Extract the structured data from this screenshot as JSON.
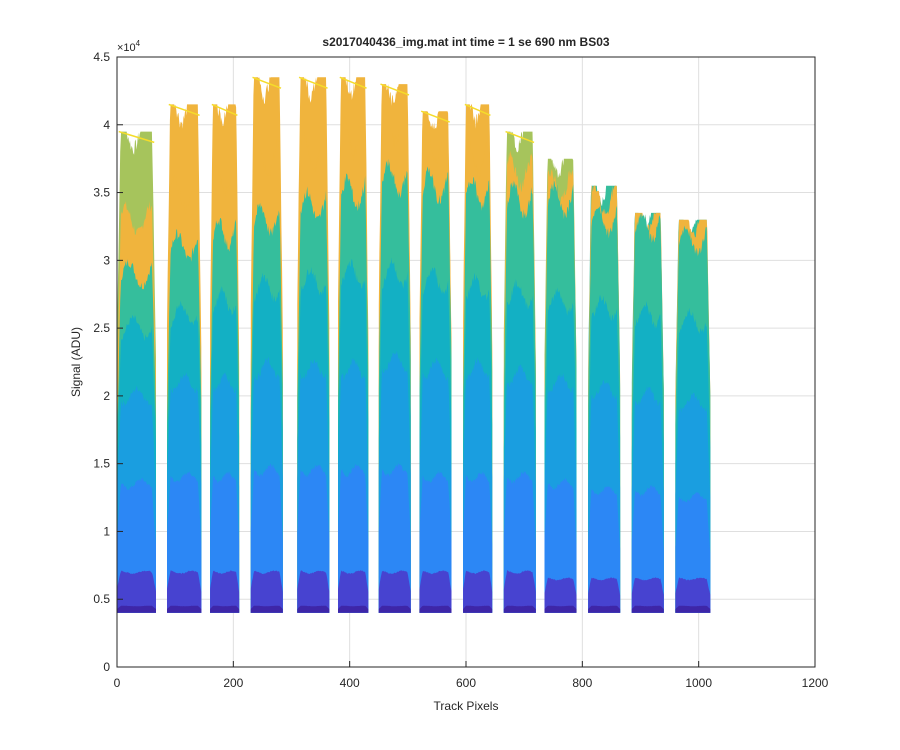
{
  "chart_data": {
    "type": "area",
    "title": "s2017040436_img.mat int time = 1 se  690 nm BS03",
    "xlabel": "Track Pixels",
    "ylabel": "Signal (ADU)",
    "y_exponent_label": "×10",
    "y_exponent_power": "4",
    "xlim": [
      0,
      1200
    ],
    "ylim": [
      0,
      45000
    ],
    "x_ticks": [
      "0",
      "200",
      "400",
      "600",
      "800",
      "1000",
      "1200"
    ],
    "x_tick_values": [
      0,
      200,
      400,
      600,
      800,
      1000,
      1200
    ],
    "y_ticks": [
      "0",
      "0.5",
      "1",
      "1.5",
      "2",
      "2.5",
      "3",
      "3.5",
      "4",
      "4.5"
    ],
    "y_tick_values": [
      0,
      5000,
      10000,
      15000,
      20000,
      25000,
      30000,
      35000,
      40000,
      45000
    ],
    "grid": true,
    "baseline": 4000,
    "colors": [
      "#3e26a8",
      "#4743d0",
      "#3f64f0",
      "#2c87f5",
      "#1a9ee0",
      "#13b0c4",
      "#35be9c",
      "#a6c45c",
      "#f0b43d",
      "#f5dc2a"
    ],
    "bands": [
      {
        "x": [
          0,
          67
        ],
        "peak": 39500,
        "layers": [
          4500,
          7000,
          13500,
          20000,
          25000,
          29000,
          33000,
          39500
        ]
      },
      {
        "x": [
          86,
          145
        ],
        "peak": 41500,
        "layers": [
          4500,
          7000,
          14000,
          21000,
          26000,
          31000,
          35000,
          41500
        ]
      },
      {
        "x": [
          160,
          210
        ],
        "peak": 41500,
        "layers": [
          4500,
          7000,
          14000,
          21000,
          27000,
          32000,
          36000,
          41500
        ]
      },
      {
        "x": [
          230,
          285
        ],
        "peak": 43500,
        "layers": [
          4500,
          7000,
          14500,
          22000,
          28000,
          33000,
          37500,
          43500
        ]
      },
      {
        "x": [
          310,
          365
        ],
        "peak": 43500,
        "layers": [
          4500,
          7000,
          14500,
          22000,
          28500,
          34000,
          38000,
          43500
        ]
      },
      {
        "x": [
          380,
          432
        ],
        "peak": 43500,
        "layers": [
          4500,
          7000,
          14500,
          22000,
          29000,
          35000,
          39000,
          43500
        ]
      },
      {
        "x": [
          450,
          505
        ],
        "peak": 43000,
        "layers": [
          4500,
          7000,
          14500,
          22500,
          29000,
          36000,
          40000,
          43000
        ]
      },
      {
        "x": [
          520,
          575
        ],
        "peak": 41000,
        "layers": [
          4500,
          7000,
          14000,
          22000,
          28500,
          35500,
          38500,
          41000
        ]
      },
      {
        "x": [
          595,
          645
        ],
        "peak": 41500,
        "layers": [
          4500,
          7000,
          14000,
          22000,
          28000,
          35000,
          37500,
          41500
        ]
      },
      {
        "x": [
          665,
          720
        ],
        "peak": 39500,
        "layers": [
          4500,
          7000,
          14000,
          21500,
          27500,
          34500,
          36500,
          39500
        ]
      },
      {
        "x": [
          735,
          790
        ],
        "peak": 37500,
        "layers": [
          4500,
          6500,
          13500,
          21000,
          27000,
          34500,
          35500,
          37500
        ]
      },
      {
        "x": [
          810,
          865
        ],
        "peak": 35500,
        "layers": [
          4500,
          6500,
          13000,
          20500,
          26500,
          33000,
          34500,
          35500
        ]
      },
      {
        "x": [
          885,
          940
        ],
        "peak": 33500,
        "layers": [
          4500,
          6500,
          13000,
          20000,
          26000,
          32500,
          33500,
          33500
        ]
      },
      {
        "x": [
          960,
          1020
        ],
        "peak": 33000,
        "layers": [
          4500,
          6500,
          12500,
          19500,
          25500,
          31500,
          33000,
          33000
        ]
      }
    ]
  }
}
